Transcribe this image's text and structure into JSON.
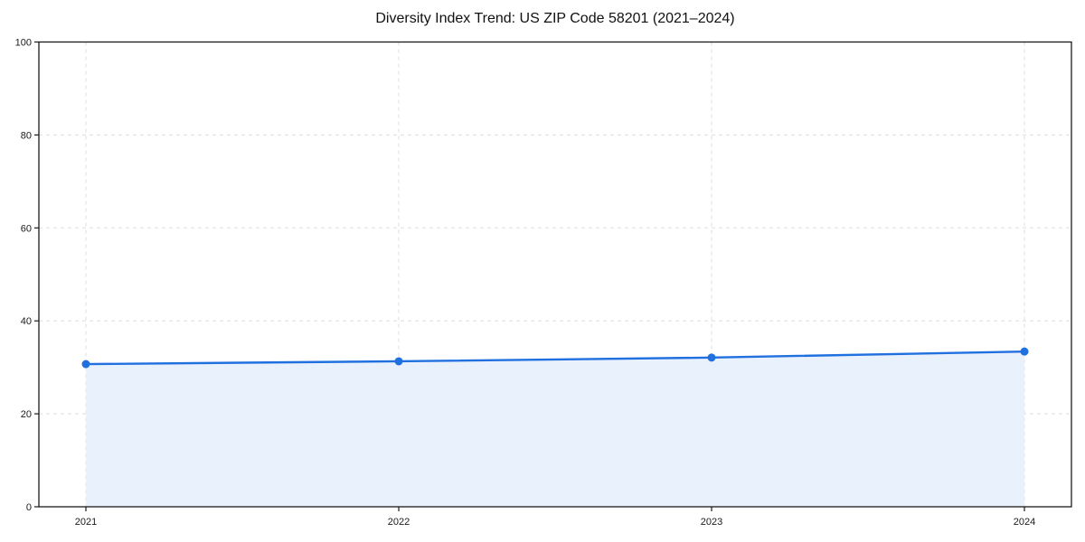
{
  "chart_data": {
    "type": "line",
    "title": "Diversity Index Trend: US ZIP Code 58201 (2021–2024)",
    "x": [
      2021,
      2022,
      2023,
      2024
    ],
    "xtick_labels": [
      "2021",
      "2022",
      "2023",
      "2024"
    ],
    "values": [
      30.7,
      31.3,
      32.1,
      33.4
    ],
    "series_label": "Diversity Index",
    "xlabel": "",
    "ylabel": "",
    "ylim": [
      0,
      100
    ],
    "yticks": [
      0,
      20,
      40,
      60,
      80,
      100
    ],
    "grid": true,
    "grid_style": "dashed",
    "legend": "none",
    "area_fill": true,
    "colors": {
      "line": "#2170e0",
      "marker": "#2170e0",
      "fill": "#e9f1fc",
      "grid": "#dedede",
      "spine": "#1a1a1a",
      "text": "#1a1a1a",
      "background": "#ffffff"
    }
  }
}
